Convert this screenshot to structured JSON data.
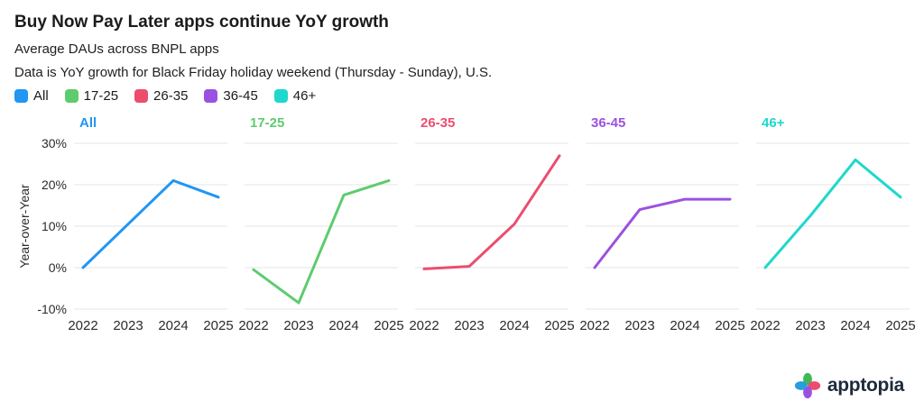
{
  "header": {
    "title": "Buy Now Pay Later apps continue YoY growth",
    "subtitle1": "Average DAUs across BNPL apps",
    "subtitle2": "Data is YoY growth for Black Friday holiday weekend (Thursday - Sunday), U.S."
  },
  "legend": [
    {
      "label": "All",
      "color": "#2196F3"
    },
    {
      "label": "17-25",
      "color": "#5ECB6E"
    },
    {
      "label": "26-35",
      "color": "#EC4D6E"
    },
    {
      "label": "36-45",
      "color": "#9B51E0"
    },
    {
      "label": "46+",
      "color": "#1ED8CC"
    }
  ],
  "chart_data": {
    "type": "line",
    "x": [
      "2022",
      "2023",
      "2024",
      "2025"
    ],
    "ylabel": "Year-over-Year",
    "ylim": [
      -10,
      30
    ],
    "yticks": [
      30,
      20,
      10,
      0,
      -10
    ],
    "ytick_labels": [
      "30%",
      "20%",
      "10%",
      "0%",
      "-10%"
    ],
    "grid": "horizontal",
    "legend_position": "top",
    "panels": [
      {
        "name": "All",
        "color": "#2196F3",
        "values": [
          0,
          10.5,
          21,
          17
        ]
      },
      {
        "name": "17-25",
        "color": "#5ECB6E",
        "values": [
          -0.5,
          -8.5,
          17.5,
          21
        ]
      },
      {
        "name": "26-35",
        "color": "#EC4D6E",
        "values": [
          -0.3,
          0.3,
          10.5,
          27
        ]
      },
      {
        "name": "36-45",
        "color": "#9B51E0",
        "values": [
          0,
          14,
          16.5,
          16.5
        ]
      },
      {
        "name": "46+",
        "color": "#1ED8CC",
        "values": [
          0,
          12.5,
          26,
          17
        ]
      }
    ]
  },
  "footer": {
    "brand": "apptopia"
  },
  "style": {
    "gridline_color": "#e4e4e4",
    "logo_colors": {
      "top": "#3DBA55",
      "right": "#EC4D6E",
      "bottom": "#9B51E0",
      "left": "#2D9CDB"
    }
  }
}
